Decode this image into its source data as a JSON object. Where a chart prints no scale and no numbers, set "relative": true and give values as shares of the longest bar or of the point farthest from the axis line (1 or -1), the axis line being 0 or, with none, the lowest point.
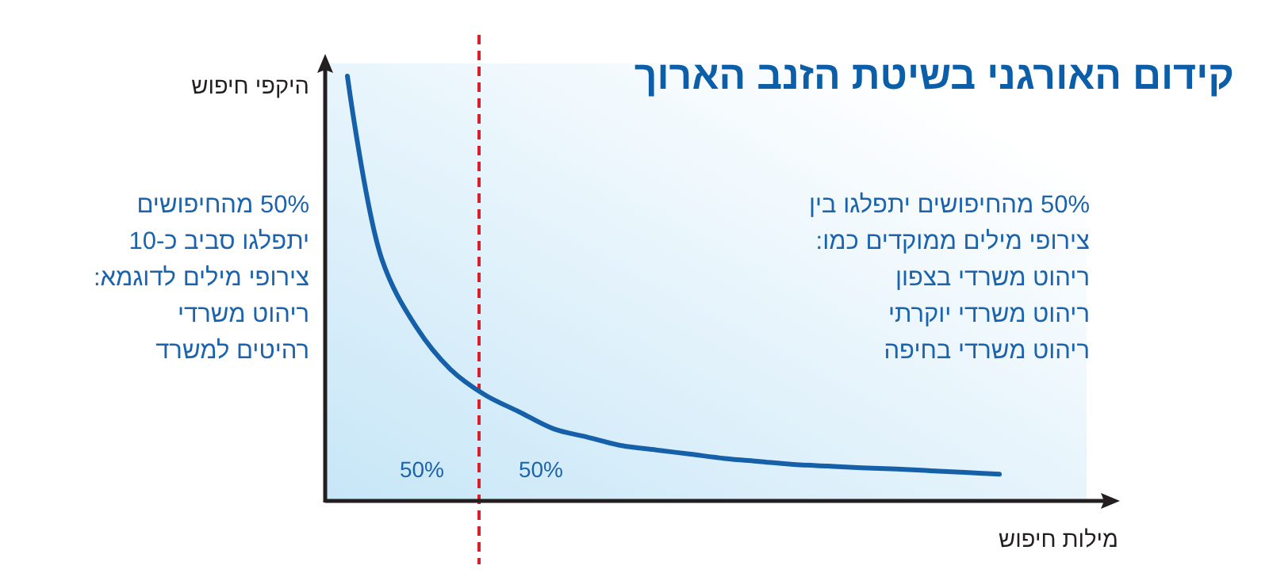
{
  "chart_data": {
    "type": "line",
    "title": "קידום האורגני בשיטת הזנב הארוך",
    "xlabel": "מילות חיפוש",
    "ylabel": "היקפי חיפוש",
    "relative": true,
    "categories": [
      null,
      null,
      null,
      null,
      null,
      null,
      null,
      null,
      null,
      null,
      null,
      null,
      null,
      null,
      null,
      null,
      null,
      null,
      null,
      null
    ],
    "series": [
      {
        "color": "#1560a8",
        "values": [
          1,
          0.57,
          0.41,
          0.31,
          0.25,
          0.21,
          0.17,
          0.15,
          0.13,
          0.12,
          0.11,
          0.1,
          0.093,
          0.086,
          0.082,
          0.078,
          0.075,
          0.071,
          0.067,
          0.063
        ]
      }
    ],
    "annotations": [
      "50% מהחיפושים\nיתפלגו סביב כ-10\nצירופי מילים לדוגמא:\nריהוט משרדי\nרהיטים למשרד",
      "50% מהחיפושים יתפלגו בין\nצירופי מילים ממוקדים כמו:\nריהוט משרדי בצפון\nריהוט משרדי יוקרתי\nריהוט משרדי בחיפה",
      "50%",
      "50%"
    ],
    "marker": "none",
    "line_style": "solid"
  }
}
